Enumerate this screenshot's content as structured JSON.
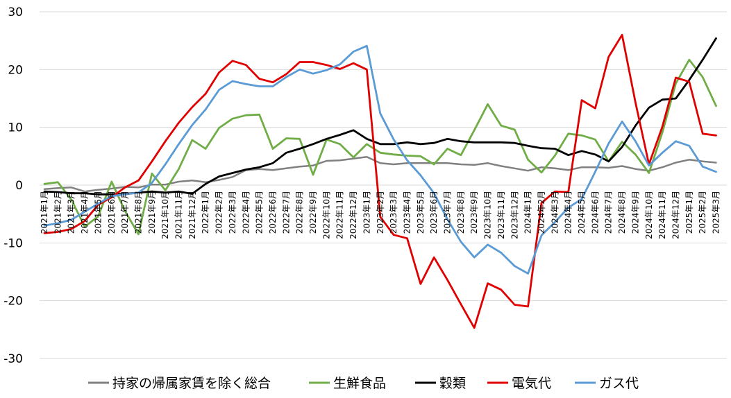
{
  "chart_data": {
    "type": "line",
    "title": "",
    "xlabel": "",
    "ylabel": "",
    "ylim": [
      -30,
      30
    ],
    "yticks": [
      "30",
      "20",
      "10",
      "0",
      "-10",
      "-20",
      "-30"
    ],
    "ytick_values": [
      30,
      20,
      10,
      0,
      -10,
      -20,
      -30
    ],
    "grid": "horizontal",
    "legend_position": "bottom",
    "categories": [
      "2021年1月",
      "2021年2月",
      "2021年3月",
      "2021年4月",
      "2021年5月",
      "2021年6月",
      "2021年7月",
      "2021年8月",
      "2021年9月",
      "2021年10月",
      "2021年11月",
      "2021年12月",
      "2022年1月",
      "2022年2月",
      "2022年3月",
      "2022年4月",
      "2022年5月",
      "2022年6月",
      "2022年7月",
      "2022年8月",
      "2022年9月",
      "2022年10月",
      "2022年11月",
      "2022年12月",
      "2023年1月",
      "2023年2月",
      "2023年3月",
      "2023年4月",
      "2023年5月",
      "2023年6月",
      "2023年7月",
      "2023年8月",
      "2023年9月",
      "2023年10月",
      "2023年11月",
      "2023年12月",
      "2024年1月",
      "2024年2月",
      "2024年3月",
      "2024年4月",
      "2024年5月",
      "2024年6月",
      "2024年7月",
      "2024年8月",
      "2024年9月",
      "2024年10月",
      "2024年11月",
      "2024年12月",
      "2025年1月",
      "2025年2月",
      "2025年3月"
    ],
    "series": [
      {
        "name": "持家の帰属家賃を除く総合",
        "color": "#808080",
        "values": [
          -0.7,
          -0.5,
          -0.4,
          -1.1,
          -0.8,
          -0.6,
          -0.3,
          -0.4,
          0.1,
          0.1,
          0.6,
          0.8,
          0.5,
          0.9,
          1.4,
          2.6,
          2.8,
          2.6,
          2.9,
          3.2,
          3.4,
          4.2,
          4.3,
          4.6,
          4.9,
          3.8,
          3.6,
          3.8,
          3.8,
          3.8,
          3.8,
          3.6,
          3.5,
          3.8,
          3.3,
          2.9,
          2.5,
          3.1,
          2.9,
          2.6,
          3.1,
          3.1,
          3.0,
          3.3,
          2.8,
          2.5,
          3.1,
          3.9,
          4.4,
          4.1,
          3.9
        ]
      },
      {
        "name": "生鮮食品",
        "color": "#70AD47",
        "values": [
          0.2,
          0.5,
          -2.5,
          -7.2,
          -5.4,
          0.6,
          -4.5,
          -8.5,
          2.0,
          -0.9,
          2.8,
          7.8,
          6.3,
          9.9,
          11.5,
          12.1,
          12.2,
          6.3,
          8.1,
          8.0,
          1.8,
          7.9,
          7.1,
          4.8,
          7.1,
          5.6,
          5.3,
          5.1,
          5.0,
          3.6,
          6.3,
          5.2,
          9.5,
          14.0,
          10.3,
          9.6,
          4.4,
          2.2,
          5.1,
          8.9,
          8.6,
          7.9,
          4.1,
          7.5,
          5.3,
          2.1,
          9.1,
          17.6,
          21.7,
          18.7,
          13.7
        ]
      },
      {
        "name": "穀類",
        "color": "#000000",
        "values": [
          -1.1,
          -1.2,
          -1.4,
          -1.4,
          -1.6,
          -1.6,
          -1.5,
          -1.3,
          -1.1,
          -1.3,
          -1.1,
          -1.5,
          0.2,
          1.5,
          2.1,
          2.7,
          3.1,
          3.8,
          5.6,
          6.3,
          7.1,
          8.0,
          8.7,
          9.5,
          8.0,
          7.1,
          7.1,
          7.4,
          7.1,
          7.3,
          8.0,
          7.6,
          7.4,
          7.4,
          7.4,
          7.3,
          6.8,
          6.4,
          6.3,
          5.2,
          5.9,
          5.3,
          4.1,
          6.6,
          10.3,
          13.4,
          14.8,
          15.0,
          18.2,
          21.7,
          25.4
        ]
      },
      {
        "name": "電気代",
        "color": "#E00000",
        "values": [
          -8.3,
          -8.1,
          -7.6,
          -6.2,
          -3.4,
          -2.1,
          -0.4,
          0.8,
          4.1,
          7.6,
          10.8,
          13.5,
          15.8,
          19.5,
          21.5,
          20.8,
          18.4,
          17.8,
          19.2,
          21.3,
          21.3,
          20.8,
          20.1,
          21.1,
          20.0,
          -5.5,
          -8.6,
          -9.2,
          -17.1,
          -12.5,
          -16.4,
          -20.6,
          -24.7,
          -17.0,
          -18.1,
          -20.7,
          -21.0,
          -3.1,
          -1.1,
          -1.2,
          14.7,
          13.3,
          22.2,
          26.0,
          14.3,
          3.6,
          10.1,
          18.6,
          17.9,
          8.9,
          8.6
        ]
      },
      {
        "name": "ガス代",
        "color": "#5B9BD5",
        "values": [
          -7.0,
          -6.6,
          -6.0,
          -4.6,
          -3.2,
          -1.9,
          -1.6,
          -1.3,
          0.4,
          3.6,
          7.1,
          10.4,
          13.1,
          16.5,
          18.0,
          17.5,
          17.1,
          17.1,
          18.7,
          20.0,
          19.3,
          19.9,
          20.9,
          23.1,
          24.1,
          12.4,
          7.9,
          4.3,
          1.7,
          -1.4,
          -5.9,
          -9.8,
          -12.5,
          -10.3,
          -11.7,
          -14.0,
          -15.3,
          -8.7,
          -6.4,
          -3.9,
          -2.4,
          2.3,
          7.2,
          11.0,
          7.6,
          3.4,
          5.6,
          7.6,
          6.8,
          3.2,
          2.3
        ]
      }
    ]
  },
  "legend": {
    "items": [
      {
        "label": "持家の帰属家賃を除く総合",
        "color": "#808080"
      },
      {
        "label": "生鮮食品",
        "color": "#70AD47"
      },
      {
        "label": "穀類",
        "color": "#000000"
      },
      {
        "label": "電気代",
        "color": "#E00000"
      },
      {
        "label": "ガス代",
        "color": "#5B9BD5"
      }
    ]
  }
}
